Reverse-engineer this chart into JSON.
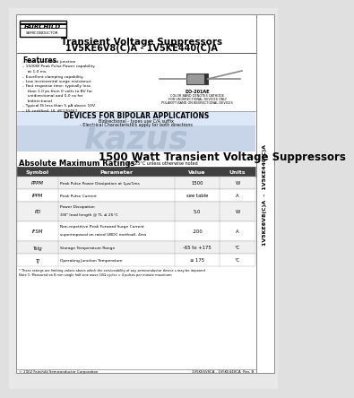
{
  "title_main": "Transient Voltage Suppressors",
  "title_sub": "1V5KE6V8(C)A - 1V5KE440(C)A",
  "fairchild_text": "FAIRCHILD",
  "semiconductor_text": "SEMICONDUCTOR",
  "side_text": "1V5KE6V8(C)A  -  1V5KE440(C)A",
  "features_title": "Features",
  "features": [
    "Glass passivated junction",
    "1500W Peak Pulse Power capability at 1.0 ms.",
    "Excellent clamping capability.",
    "Low incremental surge resistance",
    "Fast response time: typically less than 1.0 ps from 0 volts to BV for unidirectional and 5.0 ns for bidirectional",
    "Typical IS less than 5 µA above 10V.",
    "UL certified, UL #E170467"
  ],
  "do214ae_title": "DO-201AE",
  "do214ae_notes": [
    "COLOR BAND DENOTES CATHODE",
    "FOR UNIDIRECTIONAL DEVICES ONLY",
    "POLARITY BAND ON BIDIRECTIONAL DEVICES"
  ],
  "bipolar_title": "DEVICES FOR BIPOLAR APPLICATIONS",
  "bipolar_sub1": "Bidirectional - types use C/A suffix",
  "bipolar_sub2": "- Electrical Characteristics apply for both directions",
  "watt_title": "1500 Watt Transient Voltage Suppressors",
  "abs_max_title": "Absolute Maximum Ratings*",
  "abs_max_note": "TA=25°C unless otherwise noted",
  "table_headers": [
    "Symbol",
    "Parameter",
    "Value",
    "Units"
  ],
  "table_rows": [
    [
      "PPPM",
      "Peak Pulse Power Dissipation at 1μs/1ms",
      "1500",
      "W"
    ],
    [
      "IPPM",
      "Peak Pulse Current",
      "see table",
      "A"
    ],
    [
      "PD",
      "Power Dissipation\n3/8\" lead length @ TL ≤ 25°C",
      "5.0",
      "W"
    ],
    [
      "IFSM",
      "Non-repetitive Peak Forward Surge Current\nsuperimposed on rated UBDC method), 4ms",
      ".200",
      "A"
    ],
    [
      "Tstg",
      "Storage Temperature Range",
      "-65 to +175",
      "°C"
    ],
    [
      "TJ",
      "Operating Junction Temperature",
      "≤ 175",
      "°C"
    ]
  ],
  "footnote1": "* These ratings are limiting values above which the serviceability of any semiconductor device s may be impaired",
  "footnote2": "Note 1: Measured on 8 mm single half sine wave 10Ω cycles = 4 pulses per minute maximum",
  "footer_left": "© 2002 Fairchild Semiconductor Corporation",
  "footer_right": "1V5KE6V8CA - 1V5KE440CA  Rev. B",
  "bg_color": "#ffffff",
  "page_bg": "#f5f5f5",
  "side_bar_color": "#e8e8e8",
  "kazus_color": "#c8d4e8",
  "bipolar_bg": "#dce8f8"
}
